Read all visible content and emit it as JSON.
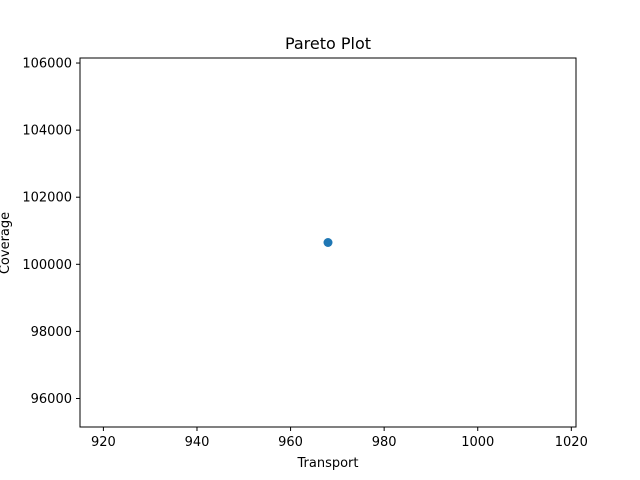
{
  "chart_data": {
    "type": "scatter",
    "title": "Pareto Plot",
    "xlabel": "Transport",
    "ylabel": "Coverage",
    "xlim": [
      915,
      1021
    ],
    "ylim": [
      95150,
      106150
    ],
    "xticks": [
      920,
      940,
      960,
      980,
      1000,
      1020
    ],
    "yticks": [
      96000,
      98000,
      100000,
      102000,
      104000,
      106000
    ],
    "grid": false,
    "series": [
      {
        "color": "#1f77b4",
        "points": [
          {
            "x": 968,
            "y": 100650
          }
        ]
      }
    ]
  }
}
